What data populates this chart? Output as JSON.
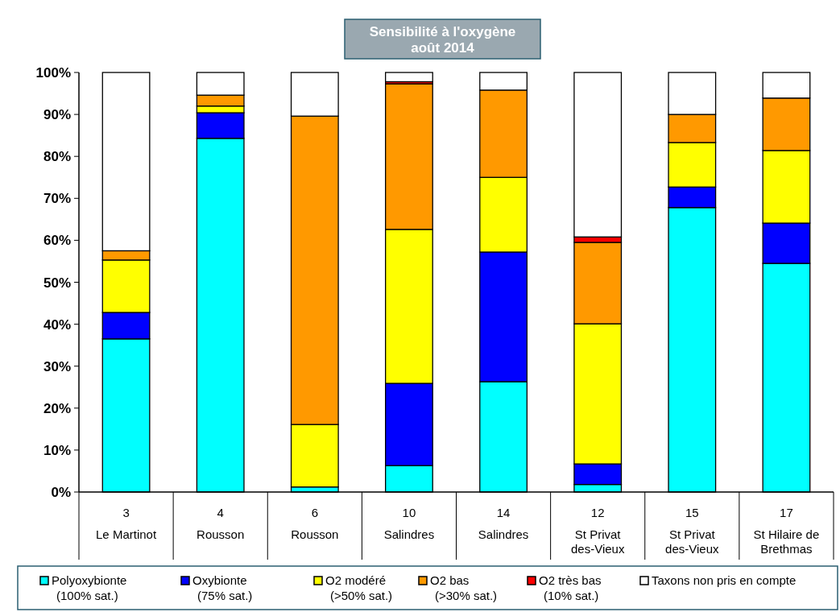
{
  "chart_data": {
    "type": "bar",
    "title": "Sensibilité à l'oxygène\naoût 2014",
    "stacked": true,
    "categories": [
      "3\nLe Martinot",
      "4\nRousson",
      "6\nRousson",
      "10\nSalindres",
      "14\nSalindres",
      "12\nSt Privat\ndes-Vieux",
      "15\nSt Privat\ndes-Vieux",
      "17\nSt Hilaire de\nBrethmas"
    ],
    "series": [
      {
        "name": "Polyoxybionte\n(100% sat.)",
        "color": "#00ffff",
        "values": [
          36.5,
          84.3,
          1.2,
          6.3,
          26.3,
          1.8,
          67.8,
          54.5
        ]
      },
      {
        "name": "Oxybionte\n(75% sat.)",
        "color": "#0000ff",
        "values": [
          6.3,
          6.1,
          0,
          19.6,
          30.9,
          4.9,
          4.9,
          9.6
        ]
      },
      {
        "name": "O2 modéré\n(>50% sat.)",
        "color": "#ffff00",
        "values": [
          12.5,
          1.6,
          14.9,
          36.7,
          17.8,
          33.4,
          10.6,
          17.3
        ]
      },
      {
        "name": "O2 bas\n(>30% sat.)",
        "color": "#ff9900",
        "values": [
          2.2,
          2.6,
          73.5,
          34.7,
          20.8,
          19.4,
          6.7,
          12.5
        ]
      },
      {
        "name": "O2 très bas\n(10% sat.)",
        "color": "#ff0000",
        "values": [
          0,
          0,
          0,
          0.5,
          0,
          1.3,
          0,
          0
        ]
      },
      {
        "name": "Taxons non pris en compte",
        "color": "#ffffff",
        "values": [
          42.5,
          5.4,
          10.4,
          2.2,
          4.2,
          39.2,
          10,
          6.1
        ]
      }
    ],
    "ylim": [
      0,
      100
    ],
    "yticks": [
      {
        "value": 0,
        "label": "0%"
      },
      {
        "value": 10,
        "label": "10%"
      },
      {
        "value": 20,
        "label": "20%"
      },
      {
        "value": 30,
        "label": "30%"
      },
      {
        "value": 40,
        "label": "40%"
      },
      {
        "value": 50,
        "label": "50%"
      },
      {
        "value": 60,
        "label": "60%"
      },
      {
        "value": 70,
        "label": "70%"
      },
      {
        "value": 80,
        "label": "80%"
      },
      {
        "value": 90,
        "label": "90%"
      },
      {
        "value": 100,
        "label": "100%"
      }
    ],
    "legend": "bottom"
  }
}
